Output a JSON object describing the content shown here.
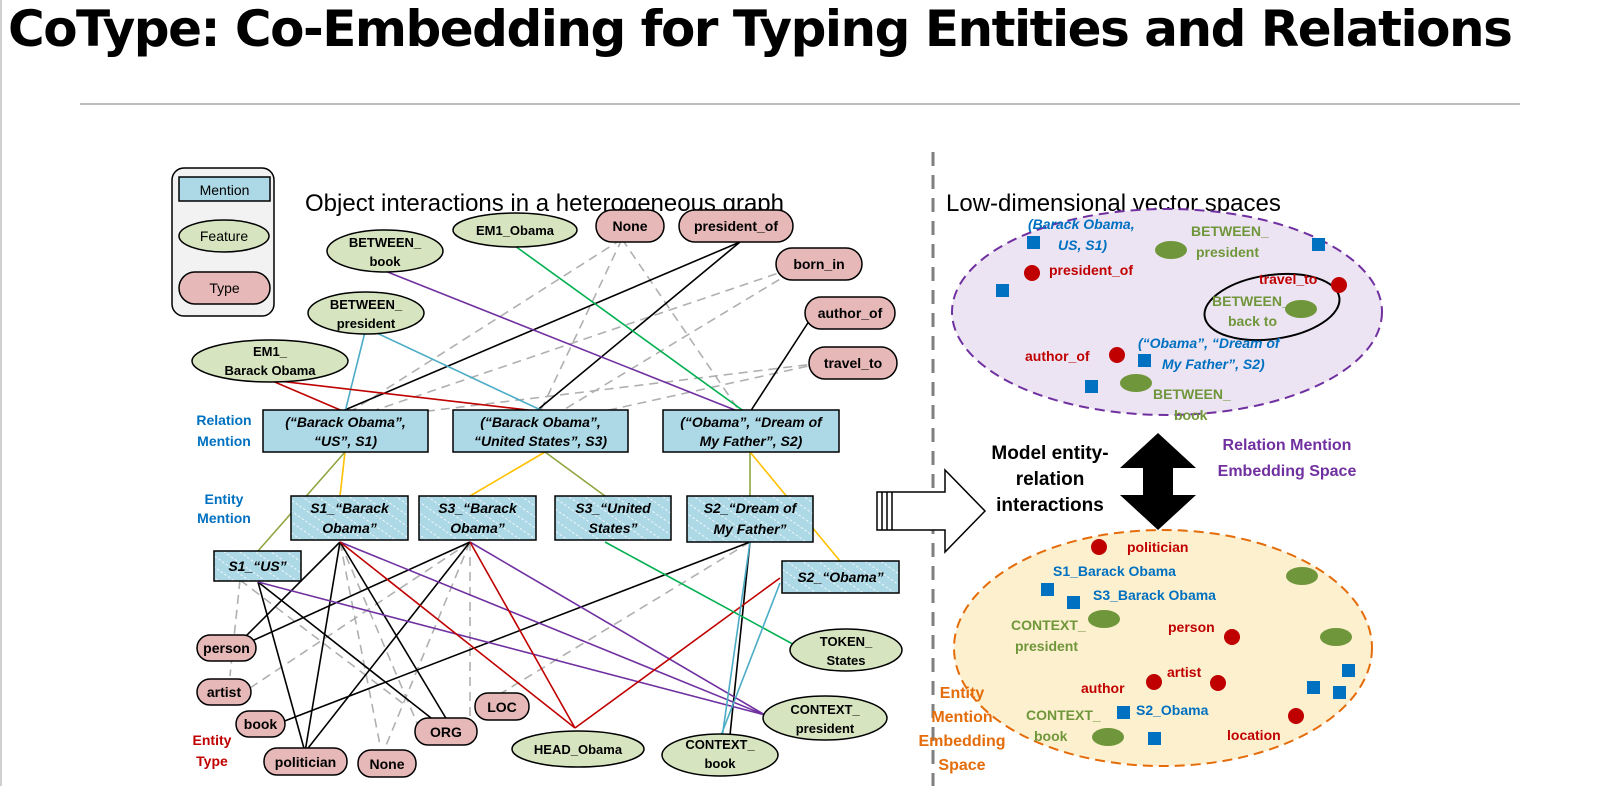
{
  "title": "CoType: Co-Embedding for Typing Entities and Relations",
  "left_heading": "Object interactions in a heterogeneous graph",
  "right_heading": "Low-dimensional vector spaces",
  "legend": {
    "mention": "Mention",
    "feature": "Feature",
    "type": "Type"
  },
  "row_labels": {
    "relation_mention": [
      "Relation",
      "Mention"
    ],
    "entity_mention": [
      "Entity",
      "Mention"
    ],
    "entity_type": [
      "Entity",
      "Type"
    ]
  },
  "top_features": {
    "between_book": [
      "BETWEEN_",
      "book"
    ],
    "em1_obama": [
      "EM1_Obama"
    ],
    "between_president": [
      "BETWEEN_",
      "president"
    ],
    "em1_barack_obama": [
      "EM1_",
      "Barack Obama"
    ]
  },
  "relation_types": {
    "none": "None",
    "president_of": "president_of",
    "born_in": "born_in",
    "author_of": "author_of",
    "travel_to": "travel_to"
  },
  "relation_mentions": {
    "rm1": [
      "(“Barack Obama”,",
      "“US”, S1)"
    ],
    "rm2": [
      "(“Barack Obama”,",
      "“United States”, S3)"
    ],
    "rm3": [
      "(“Obama”, “Dream of",
      "My Father”, S2)"
    ]
  },
  "entity_mentions": {
    "em1": [
      "S1_“Barack",
      "Obama”"
    ],
    "em2": [
      "S3_“Barack",
      "Obama”"
    ],
    "em3": [
      "S3_“United",
      "States”"
    ],
    "em4": [
      "S2_“Dream of",
      "My Father”"
    ],
    "em5": [
      "S1_“US”"
    ],
    "em6": [
      "S2_“Obama”"
    ]
  },
  "entity_types": {
    "person": "person",
    "artist": "artist",
    "book": "book",
    "politician": "politician",
    "none": "None",
    "org": "ORG",
    "loc": "LOC"
  },
  "bottom_features": {
    "token_states": [
      "TOKEN_",
      "States"
    ],
    "context_president": [
      "CONTEXT_",
      "president"
    ],
    "head_obama": [
      "HEAD_Obama"
    ],
    "context_book": [
      "CONTEXT_",
      "book"
    ]
  },
  "arrow_label": [
    "Model entity-",
    "relation",
    "interactions"
  ],
  "relation_space": {
    "caption": [
      "Relation  Mention",
      "Embedding Space"
    ],
    "labels": {
      "rm1": [
        "(Barack Obama,",
        "US, S1)"
      ],
      "between_president": [
        "BETWEEN_",
        "president"
      ],
      "president_of": "president_of",
      "travel_to": "travel_to",
      "between_back_to": [
        "BETWEEN_",
        "back to"
      ],
      "author_of": "author_of",
      "rm3": [
        "(“Obama”, “Dream of",
        "My Father”, S2)"
      ],
      "between_book": [
        "BETWEEN_",
        "book"
      ]
    }
  },
  "entity_space": {
    "caption": [
      "Entity",
      "Mention",
      "Embedding",
      "Space"
    ],
    "labels": {
      "politician": "politician",
      "s1_barack_obama": "S1_Barack Obama",
      "s3_barack_obama": "S3_Barack Obama",
      "context_president": [
        "CONTEXT_",
        "president"
      ],
      "person": "person",
      "author": "author",
      "artist": "artist",
      "context_book": [
        "CONTEXT_",
        "book"
      ],
      "s2_obama": "S2_Obama",
      "location": "location"
    }
  },
  "colors": {
    "mention_fill": "#add8e6",
    "feature_fill": "#d6e4c0",
    "type_fill": "#e6b8b8",
    "red": "#c00000",
    "blue": "#0070c0",
    "green": "#70963b",
    "purple": "#7030a0",
    "orange": "#e46c0a",
    "relation_space_fill": "#ece4f3",
    "entity_space_fill": "#fdf0cf"
  }
}
